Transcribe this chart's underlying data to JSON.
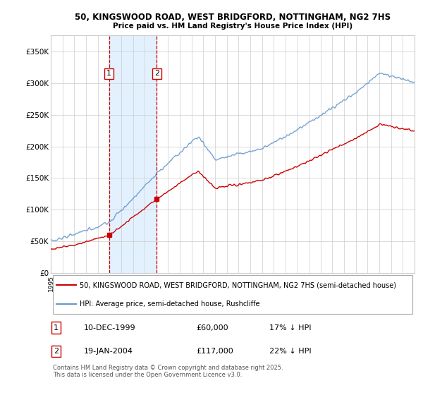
{
  "title": "50, KINGSWOOD ROAD, WEST BRIDGFORD, NOTTINGHAM, NG2 7HS",
  "subtitle": "Price paid vs. HM Land Registry's House Price Index (HPI)",
  "legend_line1": "50, KINGSWOOD ROAD, WEST BRIDGFORD, NOTTINGHAM, NG2 7HS (semi-detached house)",
  "legend_line2": "HPI: Average price, semi-detached house, Rushcliffe",
  "sale1_date": "10-DEC-1999",
  "sale1_price": 60000,
  "sale1_hpi": "17% ↓ HPI",
  "sale2_date": "19-JAN-2004",
  "sale2_price": 117000,
  "sale2_hpi": "22% ↓ HPI",
  "footer": "Contains HM Land Registry data © Crown copyright and database right 2025.\nThis data is licensed under the Open Government Licence v3.0.",
  "sale_line_color": "#cc0000",
  "hpi_line_color": "#6699cc",
  "background_color": "#ffffff",
  "grid_color": "#cccccc",
  "highlight_fill": "#ddeeff",
  "dashed_line_color": "#cc0000",
  "ylim": [
    0,
    375000
  ],
  "yticks": [
    0,
    50000,
    100000,
    150000,
    200000,
    250000,
    300000,
    350000
  ],
  "ytick_labels": [
    "£0",
    "£50K",
    "£100K",
    "£150K",
    "£200K",
    "£250K",
    "£300K",
    "£350K"
  ],
  "xstart_year": 1995,
  "xend_year": 2026
}
